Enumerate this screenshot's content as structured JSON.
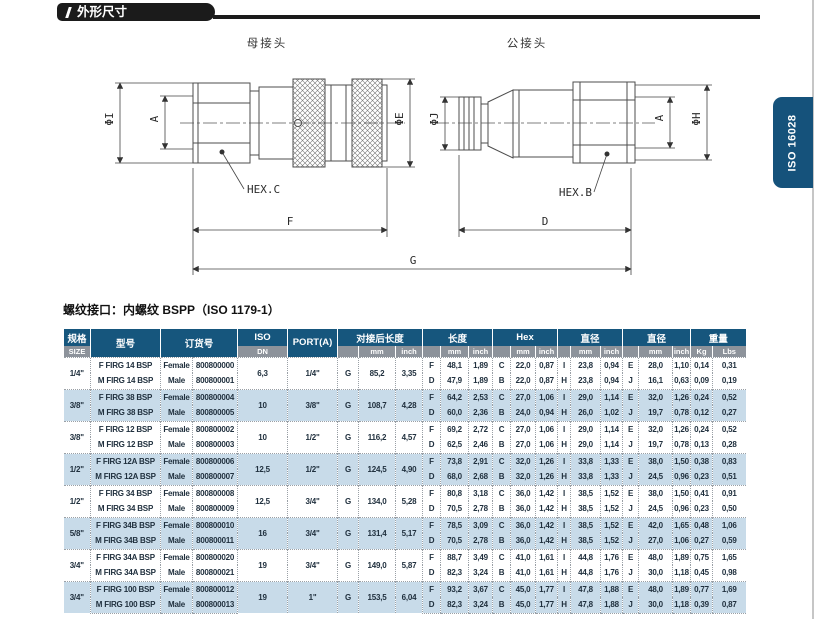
{
  "page": {
    "section_title": "外形尺寸",
    "side_tab_label": "ISO 16028",
    "table_title": "螺纹接口：内螺纹 BSPP（ISO 1179-1）"
  },
  "drawing": {
    "female_title": "母接头",
    "male_title": "公接头",
    "labels": {
      "phi_i": "ΦI",
      "a_left": "A",
      "phi_e": "ΦE",
      "hex_c": "HEX.C",
      "f": "F",
      "g": "G",
      "phi_j": "ΦJ",
      "a_right": "A",
      "phi_h": "ΦH",
      "hex_b": "HEX.B",
      "d": "D"
    }
  },
  "table": {
    "header": {
      "size_zh": "规格",
      "size_en": "SIZE",
      "model": "型号",
      "order": "订货号",
      "iso": "ISO",
      "dn": "DN",
      "port": "PORT(A)",
      "groups": [
        {
          "label": "对接后长度",
          "sub": [
            "mm",
            "inch"
          ]
        },
        {
          "label": "长度",
          "sub": [
            "mm",
            "inch"
          ]
        },
        {
          "label": "Hex",
          "sub": [
            "mm",
            "inch"
          ]
        },
        {
          "label": "直径",
          "sub": [
            "mm",
            "inch"
          ]
        },
        {
          "label": "直径",
          "sub": [
            "mm",
            "inch"
          ]
        },
        {
          "label": "重量",
          "sub": [
            "Kg",
            "Lbs"
          ]
        }
      ]
    },
    "rows": [
      {
        "size": "1/4\"",
        "dn": "6,3",
        "port": "1/4\"",
        "g": [
          "G",
          "85,2",
          "3,35"
        ],
        "female": {
          "model": "F FIRG 14 BSP",
          "gender": "Female",
          "order": "800800000",
          "len": [
            "F",
            "48,1",
            "1,89"
          ],
          "hex": [
            "C",
            "22,0",
            "0,87"
          ],
          "dia1": [
            "I",
            "23,8",
            "0,94"
          ],
          "dia2": [
            "E",
            "28,0",
            "1,10"
          ],
          "wt": [
            "0,14",
            "0,31"
          ]
        },
        "male": {
          "model": "M FIRG 14 BSP",
          "gender": "Male",
          "order": "800800001",
          "len": [
            "D",
            "47,9",
            "1,89"
          ],
          "hex": [
            "B",
            "22,0",
            "0,87"
          ],
          "dia1": [
            "H",
            "23,8",
            "0,94"
          ],
          "dia2": [
            "J",
            "16,1",
            "0,63"
          ],
          "wt": [
            "0,09",
            "0,19"
          ]
        }
      },
      {
        "size": "3/8\"",
        "dn": "10",
        "port": "3/8\"",
        "g": [
          "G",
          "108,7",
          "4,28"
        ],
        "female": {
          "model": "F FIRG 38 BSP",
          "gender": "Female",
          "order": "800800004",
          "len": [
            "F",
            "64,2",
            "2,53"
          ],
          "hex": [
            "C",
            "27,0",
            "1,06"
          ],
          "dia1": [
            "I",
            "29,0",
            "1,14"
          ],
          "dia2": [
            "E",
            "32,0",
            "1,26"
          ],
          "wt": [
            "0,24",
            "0,52"
          ]
        },
        "male": {
          "model": "M FIRG 38 BSP",
          "gender": "Male",
          "order": "800800005",
          "len": [
            "D",
            "60,0",
            "2,36"
          ],
          "hex": [
            "B",
            "24,0",
            "0,94"
          ],
          "dia1": [
            "H",
            "26,0",
            "1,02"
          ],
          "dia2": [
            "J",
            "19,7",
            "0,78"
          ],
          "wt": [
            "0,12",
            "0,27"
          ]
        }
      },
      {
        "size": "3/8\"",
        "dn": "10",
        "port": "1/2\"",
        "g": [
          "G",
          "116,2",
          "4,57"
        ],
        "female": {
          "model": "F FIRG 12 BSP",
          "gender": "Female",
          "order": "800800002",
          "len": [
            "F",
            "69,2",
            "2,72"
          ],
          "hex": [
            "C",
            "27,0",
            "1,06"
          ],
          "dia1": [
            "I",
            "29,0",
            "1,14"
          ],
          "dia2": [
            "E",
            "32,0",
            "1,26"
          ],
          "wt": [
            "0,24",
            "0,52"
          ]
        },
        "male": {
          "model": "M FIRG 12 BSP",
          "gender": "Male",
          "order": "800800003",
          "len": [
            "D",
            "62,5",
            "2,46"
          ],
          "hex": [
            "B",
            "27,0",
            "1,06"
          ],
          "dia1": [
            "H",
            "29,0",
            "1,14"
          ],
          "dia2": [
            "J",
            "19,7",
            "0,78"
          ],
          "wt": [
            "0,13",
            "0,28"
          ]
        }
      },
      {
        "size": "1/2\"",
        "dn": "12,5",
        "port": "1/2\"",
        "g": [
          "G",
          "124,5",
          "4,90"
        ],
        "female": {
          "model": "F FIRG 12A BSP",
          "gender": "Female",
          "order": "800800006",
          "len": [
            "F",
            "73,8",
            "2,91"
          ],
          "hex": [
            "C",
            "32,0",
            "1,26"
          ],
          "dia1": [
            "I",
            "33,8",
            "1,33"
          ],
          "dia2": [
            "E",
            "38,0",
            "1,50"
          ],
          "wt": [
            "0,38",
            "0,83"
          ]
        },
        "male": {
          "model": "M FIRG 12A BSP",
          "gender": "Male",
          "order": "800800007",
          "len": [
            "D",
            "68,0",
            "2,68"
          ],
          "hex": [
            "B",
            "32,0",
            "1,26"
          ],
          "dia1": [
            "H",
            "33,8",
            "1,33"
          ],
          "dia2": [
            "J",
            "24,5",
            "0,96"
          ],
          "wt": [
            "0,23",
            "0,51"
          ]
        }
      },
      {
        "size": "1/2\"",
        "dn": "12,5",
        "port": "3/4\"",
        "g": [
          "G",
          "134,0",
          "5,28"
        ],
        "female": {
          "model": "F FIRG 34 BSP",
          "gender": "Female",
          "order": "800800008",
          "len": [
            "F",
            "80,8",
            "3,18"
          ],
          "hex": [
            "C",
            "36,0",
            "1,42"
          ],
          "dia1": [
            "I",
            "38,5",
            "1,52"
          ],
          "dia2": [
            "E",
            "38,0",
            "1,50"
          ],
          "wt": [
            "0,41",
            "0,91"
          ]
        },
        "male": {
          "model": "M FIRG 34 BSP",
          "gender": "Male",
          "order": "800800009",
          "len": [
            "D",
            "70,5",
            "2,78"
          ],
          "hex": [
            "B",
            "36,0",
            "1,42"
          ],
          "dia1": [
            "H",
            "38,5",
            "1,52"
          ],
          "dia2": [
            "J",
            "24,5",
            "0,96"
          ],
          "wt": [
            "0,23",
            "0,50"
          ]
        }
      },
      {
        "size": "5/8\"",
        "dn": "16",
        "port": "3/4\"",
        "g": [
          "G",
          "131,4",
          "5,17"
        ],
        "female": {
          "model": "F FIRG 34B BSP",
          "gender": "Female",
          "order": "800800010",
          "len": [
            "F",
            "78,5",
            "3,09"
          ],
          "hex": [
            "C",
            "36,0",
            "1,42"
          ],
          "dia1": [
            "I",
            "38,5",
            "1,52"
          ],
          "dia2": [
            "E",
            "42,0",
            "1,65"
          ],
          "wt": [
            "0,48",
            "1,06"
          ]
        },
        "male": {
          "model": "M FIRG 34B BSP",
          "gender": "Male",
          "order": "800800011",
          "len": [
            "D",
            "70,5",
            "2,78"
          ],
          "hex": [
            "B",
            "36,0",
            "1,42"
          ],
          "dia1": [
            "H",
            "38,5",
            "1,52"
          ],
          "dia2": [
            "J",
            "27,0",
            "1,06"
          ],
          "wt": [
            "0,27",
            "0,59"
          ]
        }
      },
      {
        "size": "3/4\"",
        "dn": "19",
        "port": "3/4\"",
        "g": [
          "G",
          "149,0",
          "5,87"
        ],
        "female": {
          "model": "F FIRG 34A BSP",
          "gender": "Female",
          "order": "800800020",
          "len": [
            "F",
            "88,7",
            "3,49"
          ],
          "hex": [
            "C",
            "41,0",
            "1,61"
          ],
          "dia1": [
            "I",
            "44,8",
            "1,76"
          ],
          "dia2": [
            "E",
            "48,0",
            "1,89"
          ],
          "wt": [
            "0,75",
            "1,65"
          ]
        },
        "male": {
          "model": "M FIRG 34A BSP",
          "gender": "Male",
          "order": "800800021",
          "len": [
            "D",
            "82,3",
            "3,24"
          ],
          "hex": [
            "B",
            "41,0",
            "1,61"
          ],
          "dia1": [
            "H",
            "44,8",
            "1,76"
          ],
          "dia2": [
            "J",
            "30,0",
            "1,18"
          ],
          "wt": [
            "0,45",
            "0,98"
          ]
        }
      },
      {
        "size": "3/4\"",
        "dn": "19",
        "port": "1\"",
        "g": [
          "G",
          "153,5",
          "6,04"
        ],
        "female": {
          "model": "F FIRG 100 BSP",
          "gender": "Female",
          "order": "800800012",
          "len": [
            "F",
            "93,2",
            "3,67"
          ],
          "hex": [
            "C",
            "45,0",
            "1,77"
          ],
          "dia1": [
            "I",
            "47,8",
            "1,88"
          ],
          "dia2": [
            "E",
            "48,0",
            "1,89"
          ],
          "wt": [
            "0,77",
            "1,69"
          ]
        },
        "male": {
          "model": "M FIRG 100 BSP",
          "gender": "Male",
          "order": "800800013",
          "len": [
            "D",
            "82,3",
            "3,24"
          ],
          "hex": [
            "B",
            "45,0",
            "1,77"
          ],
          "dia1": [
            "H",
            "47,8",
            "1,88"
          ],
          "dia2": [
            "J",
            "30,0",
            "1,18"
          ],
          "wt": [
            "0,39",
            "0,87"
          ]
        }
      }
    ]
  },
  "colors": {
    "header_blue": "#16567d",
    "subheader_gray": "#8d939b",
    "stripe_blue": "#c8dbe9",
    "tab_black": "#1b1b1b",
    "iso_tab_blue": "#15527b"
  }
}
